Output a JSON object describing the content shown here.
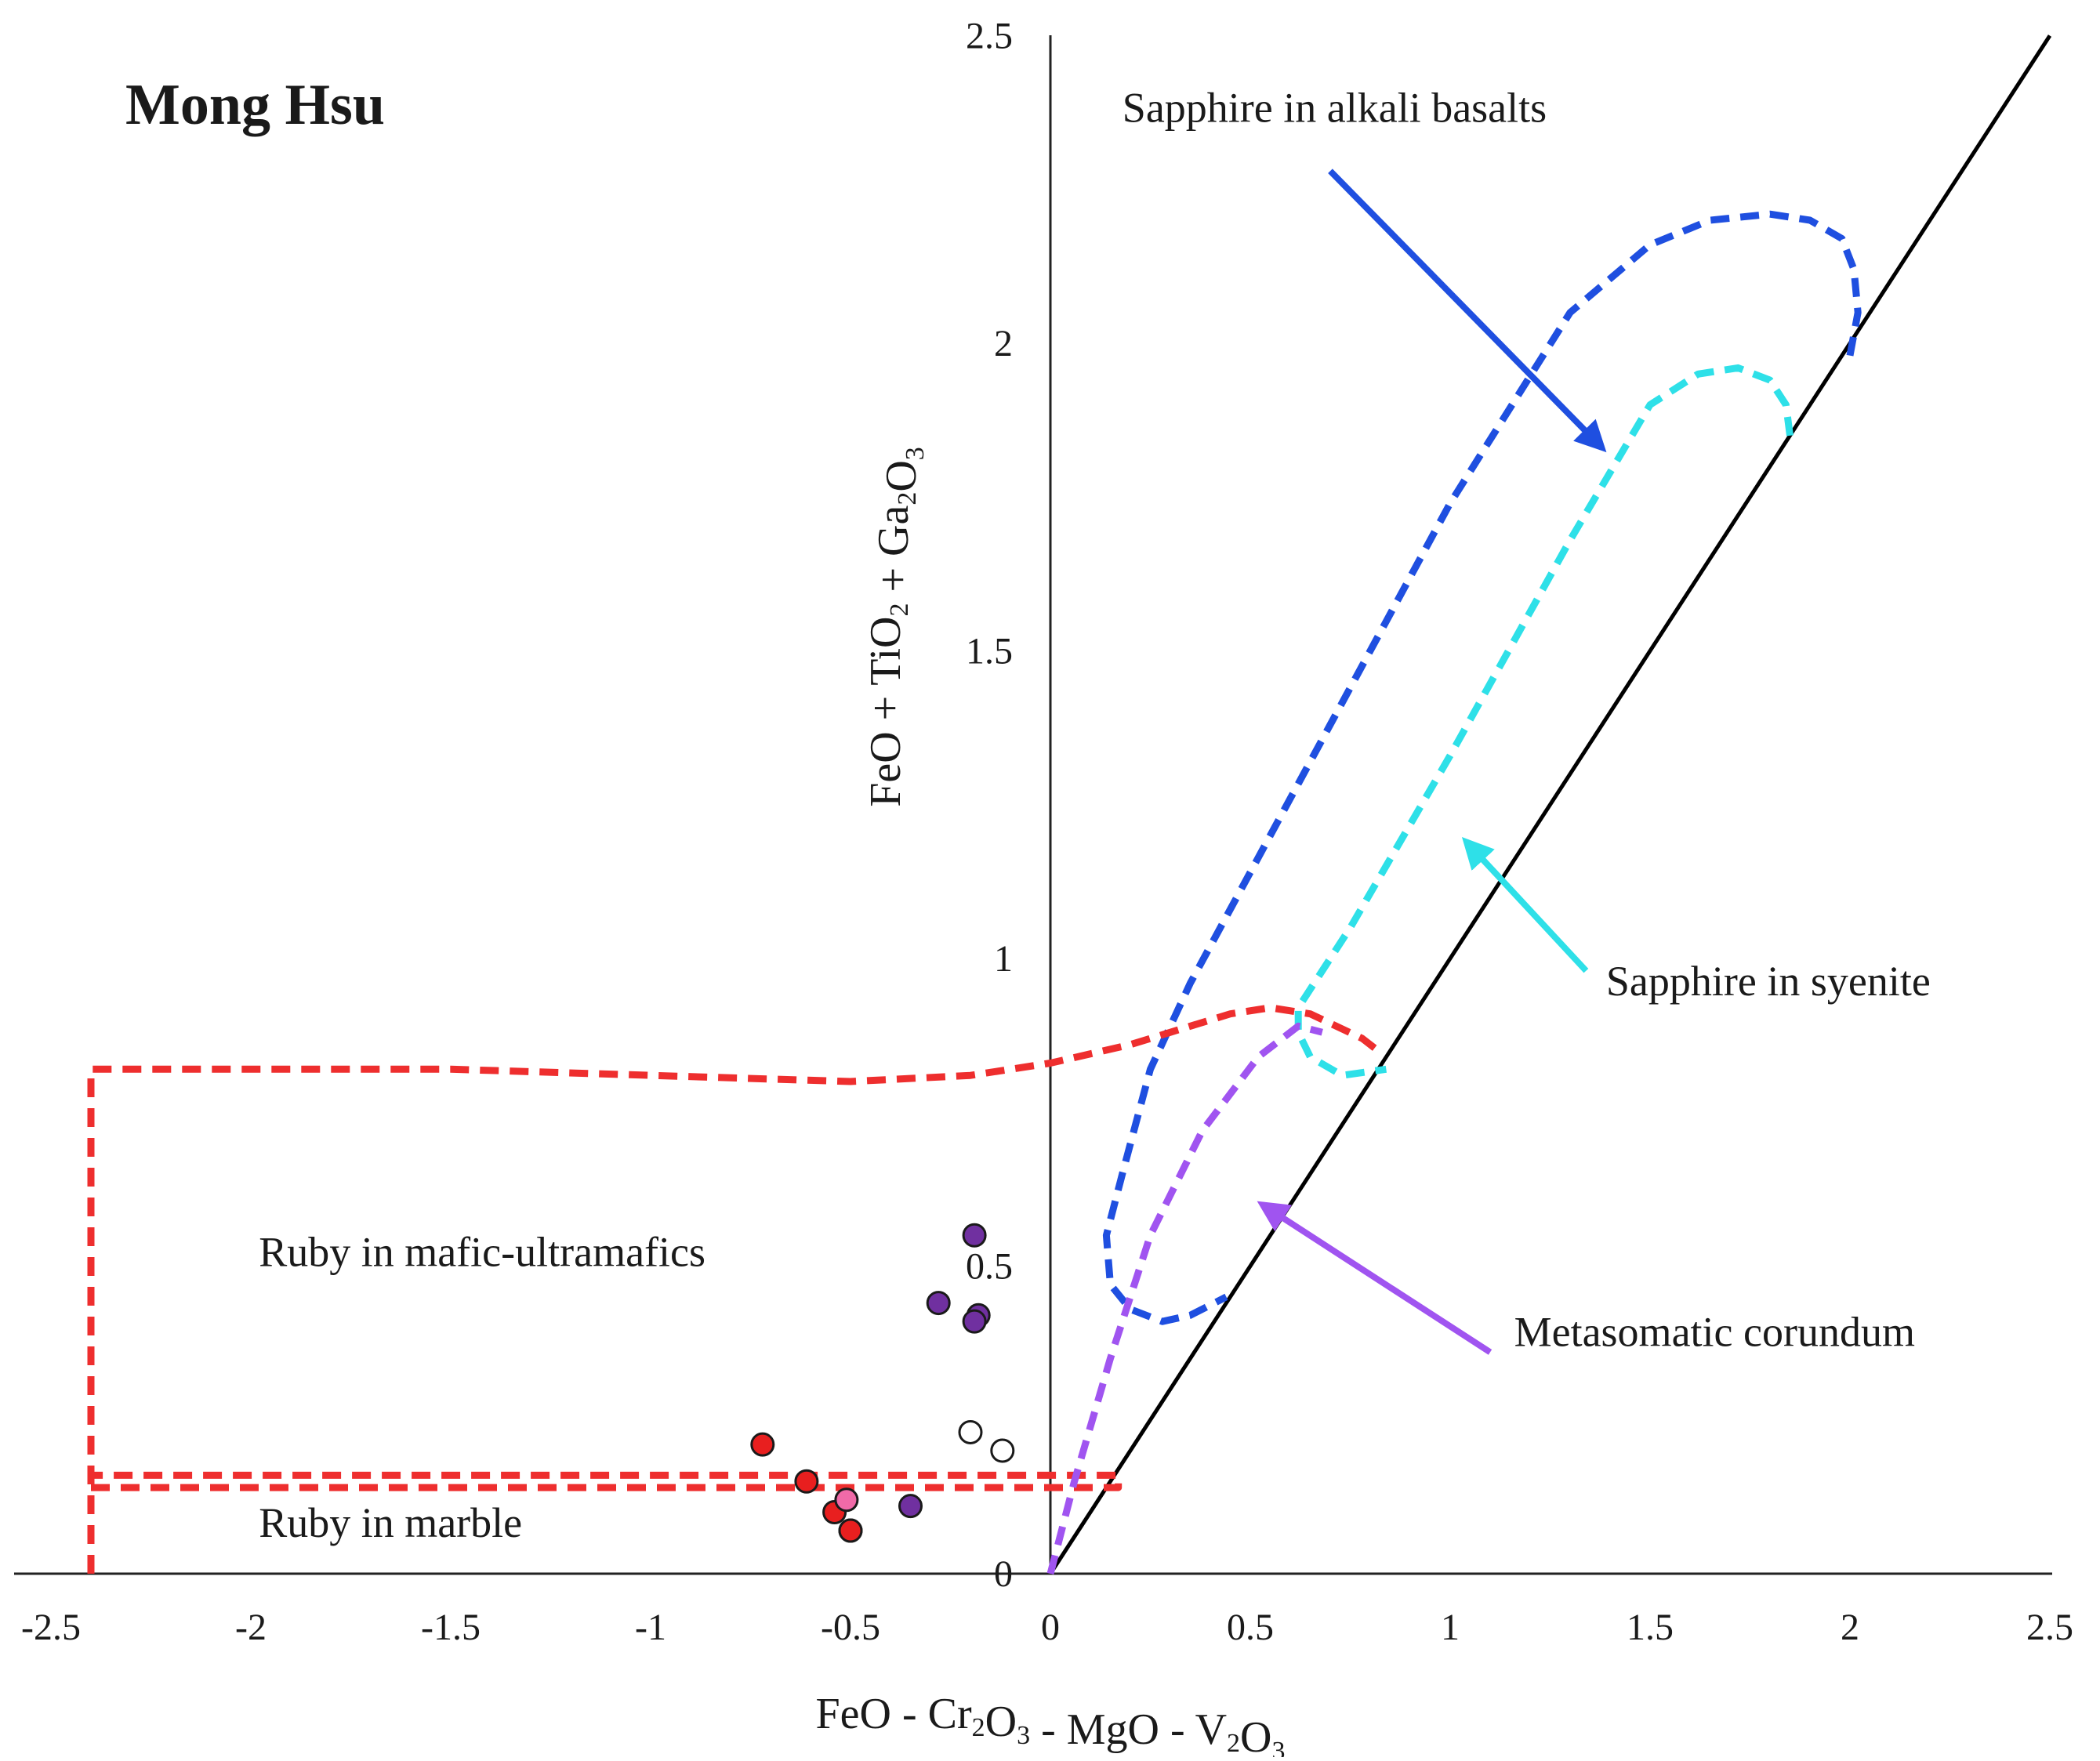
{
  "chart_data": {
    "type": "scatter",
    "title": "Mong Hsu",
    "xlabel": "FeO - Cr₂O₃ - MgO - V₂O₃",
    "ylabel": "FeO + TiO₂ + Ga₂O₃",
    "xlim": [
      -2.5,
      2.5
    ],
    "ylim": [
      0,
      2.5
    ],
    "grid": false,
    "x_ticks": [
      {
        "value": -2.5,
        "label": "-2.5"
      },
      {
        "value": -2,
        "label": "-2"
      },
      {
        "value": -1.5,
        "label": "-1.5"
      },
      {
        "value": -1,
        "label": "-1"
      },
      {
        "value": -0.5,
        "label": "-0.5"
      },
      {
        "value": 0,
        "label": "0"
      },
      {
        "value": 0.5,
        "label": "0.5"
      },
      {
        "value": 1,
        "label": "1"
      },
      {
        "value": 1.5,
        "label": "1.5"
      },
      {
        "value": 2,
        "label": "2"
      },
      {
        "value": 2.5,
        "label": "2.5"
      }
    ],
    "y_ticks": [
      {
        "value": 0,
        "label": "0"
      },
      {
        "value": 0.5,
        "label": "0.5"
      },
      {
        "value": 1,
        "label": "1"
      },
      {
        "value": 1.5,
        "label": "1.5"
      },
      {
        "value": 2,
        "label": "2"
      },
      {
        "value": 2.5,
        "label": "2.5"
      }
    ],
    "reference_line": {
      "points": [
        [
          0,
          0
        ],
        [
          2.5,
          2.5
        ]
      ],
      "color": "#000000"
    },
    "fields": [
      {
        "name": "Sapphire in alkali basalts",
        "color": "#1f4fe0",
        "points": [
          [
            2.0,
            1.98
          ],
          [
            2.02,
            2.05
          ],
          [
            2.01,
            2.12
          ],
          [
            1.98,
            2.17
          ],
          [
            1.9,
            2.2
          ],
          [
            1.8,
            2.21
          ],
          [
            1.65,
            2.2
          ],
          [
            1.5,
            2.16
          ],
          [
            1.3,
            2.05
          ],
          [
            1.0,
            1.74
          ],
          [
            0.7,
            1.38
          ],
          [
            0.35,
            0.96
          ],
          [
            0.25,
            0.82
          ],
          [
            0.18,
            0.65
          ],
          [
            0.14,
            0.55
          ],
          [
            0.15,
            0.47
          ],
          [
            0.2,
            0.43
          ],
          [
            0.28,
            0.41
          ],
          [
            0.35,
            0.42
          ],
          [
            0.44,
            0.45
          ]
        ]
      },
      {
        "name": "Sapphire in syenite",
        "color": "#2ee0e8",
        "points": [
          [
            1.85,
            1.85
          ],
          [
            1.84,
            1.9
          ],
          [
            1.8,
            1.94
          ],
          [
            1.72,
            1.96
          ],
          [
            1.62,
            1.95
          ],
          [
            1.5,
            1.9
          ],
          [
            1.3,
            1.68
          ],
          [
            1.0,
            1.33
          ],
          [
            0.75,
            1.05
          ],
          [
            0.62,
            0.92
          ],
          [
            0.62,
            0.88
          ],
          [
            0.65,
            0.84
          ],
          [
            0.73,
            0.81
          ],
          [
            0.84,
            0.82
          ]
        ]
      },
      {
        "name": "Ruby in mafic-ultramafics",
        "color": "#ee2e2e",
        "points": [
          [
            -2.4,
            0.0
          ],
          [
            -2.4,
            0.82
          ],
          [
            -1.5,
            0.82
          ],
          [
            -0.5,
            0.8
          ],
          [
            -0.2,
            0.81
          ],
          [
            0.0,
            0.83
          ],
          [
            0.2,
            0.86
          ],
          [
            0.45,
            0.91
          ],
          [
            0.55,
            0.92
          ],
          [
            0.65,
            0.91
          ],
          [
            0.78,
            0.87
          ],
          [
            0.82,
            0.85
          ]
        ]
      },
      {
        "name": "Ruby in marble",
        "color": "#ee2e2e",
        "points": [
          [
            -2.4,
            0.14
          ],
          [
            0.17,
            0.14
          ],
          [
            0.17,
            0.16
          ],
          [
            -2.4,
            0.16
          ]
        ]
      },
      {
        "name": "Metasomatic corundum",
        "color": "#a054f0",
        "points": [
          [
            0.0,
            0.0
          ],
          [
            0.06,
            0.15
          ],
          [
            0.15,
            0.35
          ],
          [
            0.25,
            0.55
          ],
          [
            0.38,
            0.72
          ],
          [
            0.52,
            0.84
          ],
          [
            0.62,
            0.89
          ],
          [
            0.68,
            0.88
          ]
        ]
      }
    ],
    "labels": [
      {
        "text": "Sapphire in alkali basalts",
        "x": 0.18,
        "y": 2.36
      },
      {
        "text": "Sapphire in syenite",
        "x": 1.39,
        "y": 0.94
      },
      {
        "text": "Metasomatic corundum",
        "x": 1.16,
        "y": 0.37
      },
      {
        "text": "Ruby in mafic-ultramafics",
        "x": -1.98,
        "y": 0.5
      },
      {
        "text": "Ruby in marble",
        "x": -1.98,
        "y": 0.06
      }
    ],
    "arrows": [
      {
        "color": "#1f4fe0",
        "from": [
          0.7,
          2.28
        ],
        "to": [
          1.38,
          1.83
        ]
      },
      {
        "color": "#2ee0e8",
        "from": [
          1.34,
          0.98
        ],
        "to": [
          1.04,
          1.19
        ]
      },
      {
        "color": "#a054f0",
        "from": [
          1.1,
          0.36
        ],
        "to": [
          0.53,
          0.6
        ]
      }
    ],
    "series": [
      {
        "name": "red",
        "color": "#e81f1f",
        "x": [
          -0.72,
          -0.61,
          -0.54,
          -0.5,
          -0.5
        ],
        "y": [
          0.21,
          0.15,
          0.1,
          0.07,
          0.07
        ]
      },
      {
        "name": "pink",
        "color": "#f06aa8",
        "x": [
          -0.51
        ],
        "y": [
          0.12
        ]
      },
      {
        "name": "purple",
        "color": "#7030a0",
        "x": [
          -0.19,
          -0.28,
          -0.18,
          -0.19,
          -0.35
        ],
        "y": [
          0.55,
          0.44,
          0.42,
          0.41,
          0.11
        ]
      },
      {
        "name": "open",
        "color": "#ffffff",
        "x": [
          -0.2,
          -0.12
        ],
        "y": [
          0.23,
          0.2
        ]
      }
    ]
  }
}
